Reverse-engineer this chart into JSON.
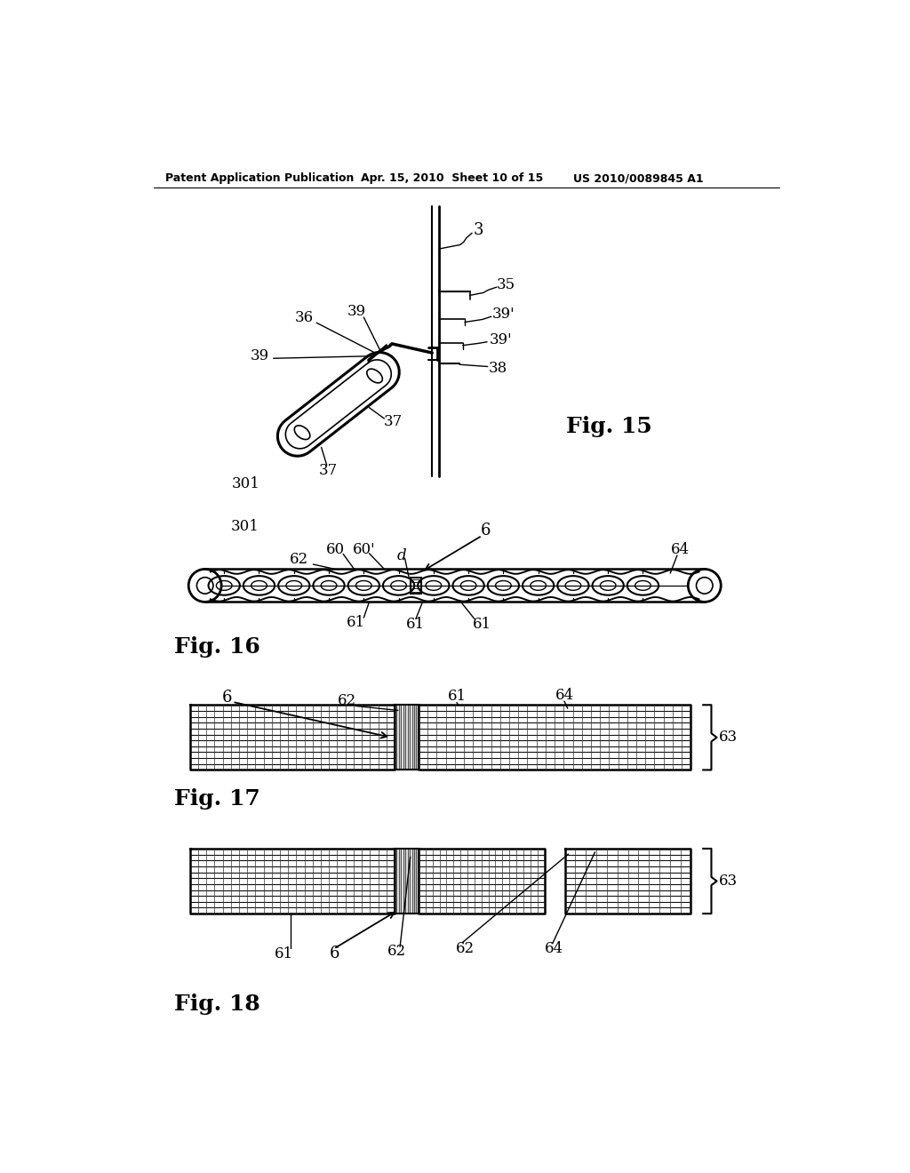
{
  "bg_color": "#ffffff",
  "header_text": "Patent Application Publication",
  "header_date": "Apr. 15, 2010  Sheet 10 of 15",
  "header_patent": "US 2010/0089845 A1",
  "line_color": "#000000",
  "text_color": "#000000"
}
